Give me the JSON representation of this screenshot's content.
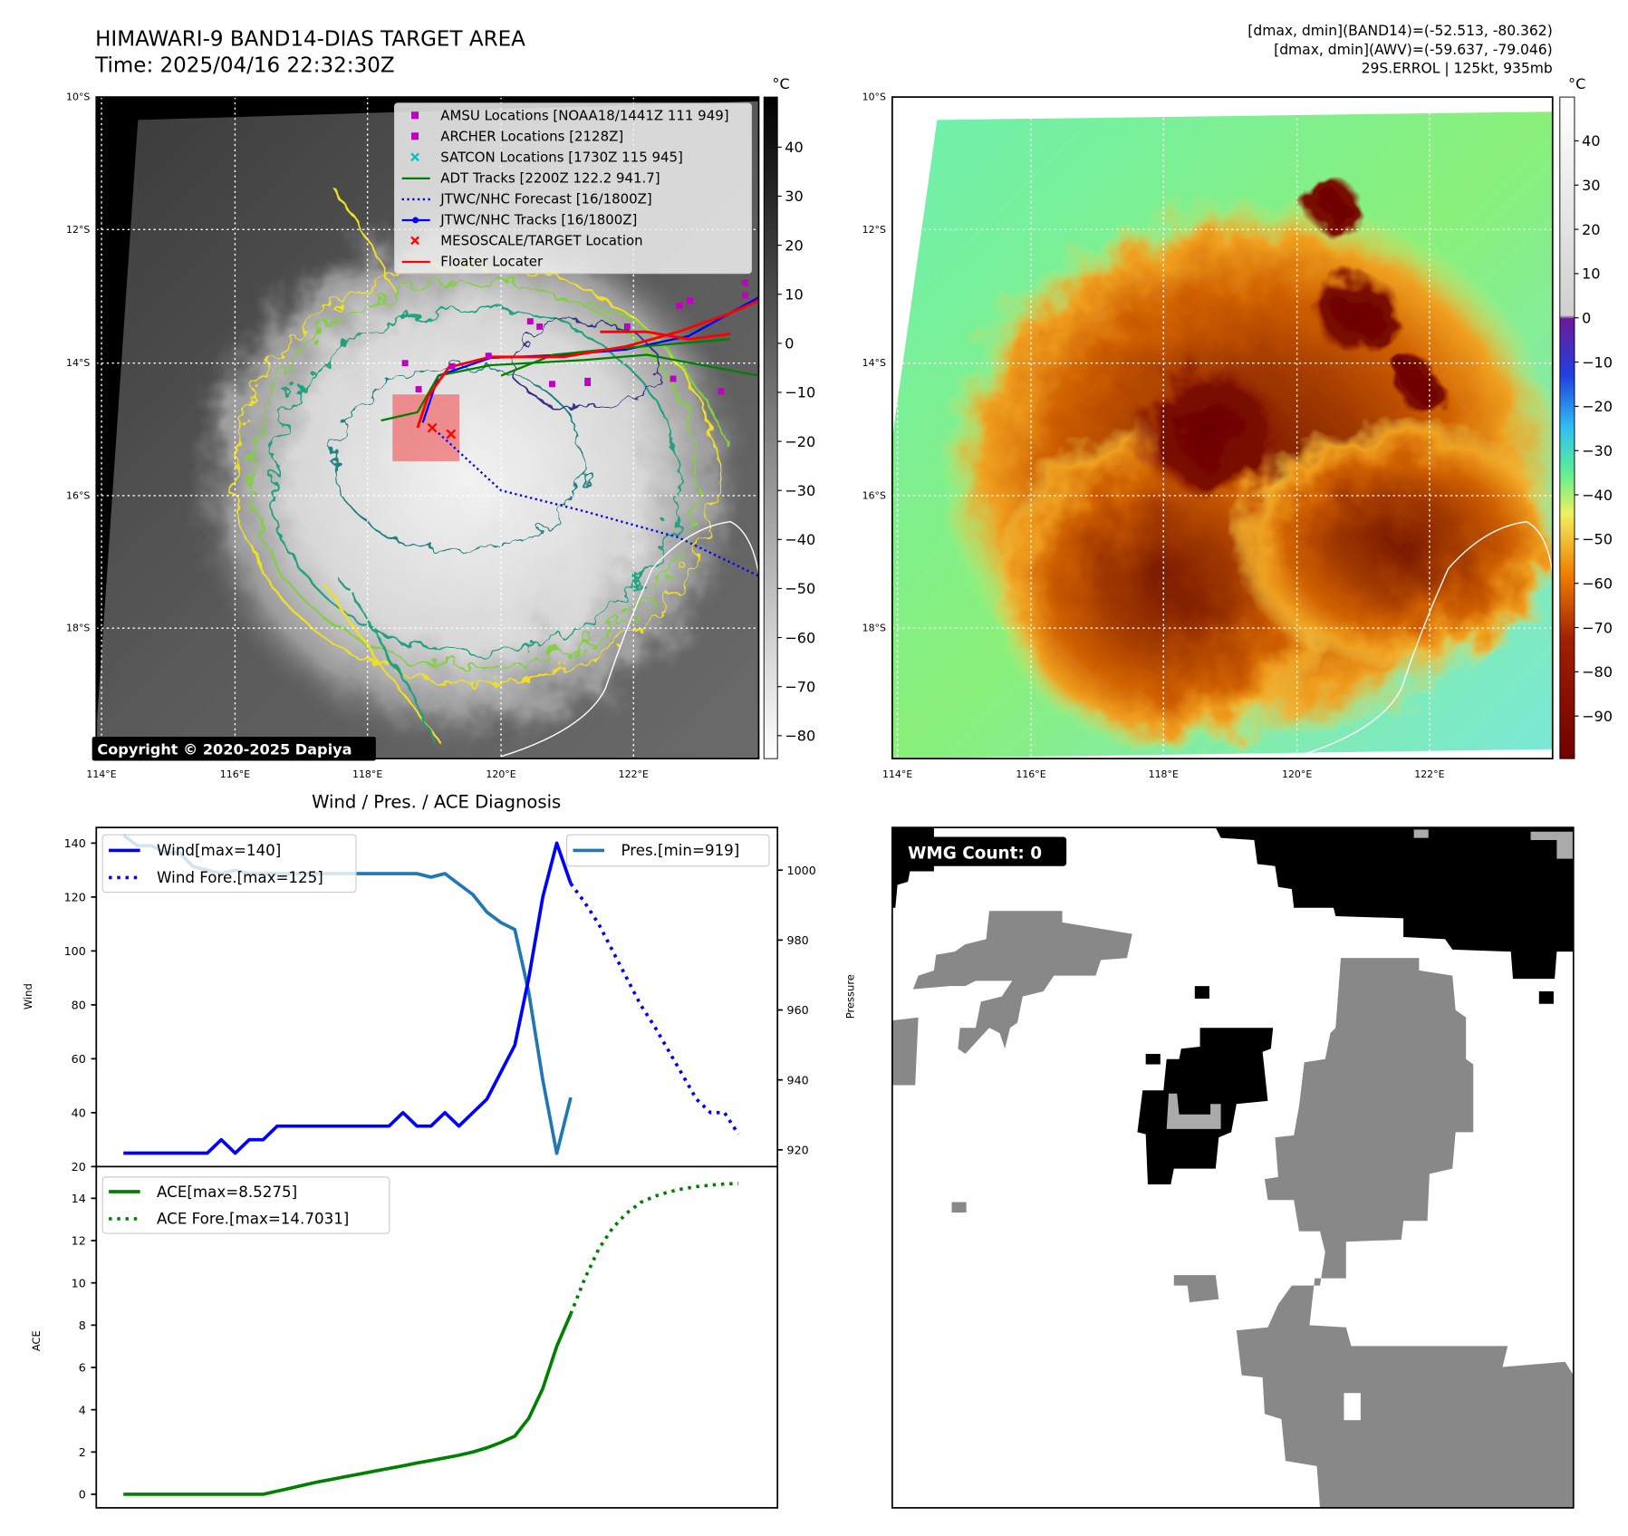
{
  "header": {
    "title_line1": "HIMAWARI-9 BAND14-DIAS TARGET AREA",
    "title_line2": "Time: 2025/04/16 22:32:30Z",
    "info_line1": "[dmax, dmin](BAND14)=(-52.513, -80.362)",
    "info_line2": "[dmax, dmin](AWV)=(-59.637, -79.046)",
    "info_line3": "29S.ERROL | 125kt, 935mb"
  },
  "maps": {
    "lat_ticks": [
      "10°S",
      "12°S",
      "14°S",
      "16°S",
      "18°S"
    ],
    "lon_ticks": [
      "114°E",
      "116°E",
      "118°E",
      "120°E",
      "122°E"
    ],
    "colorbar_unit": "°C",
    "left_colorbar_ticks": [
      "40",
      "30",
      "20",
      "10",
      "0",
      "−10",
      "−20",
      "−30",
      "−40",
      "−50",
      "−60",
      "−70",
      "−80"
    ],
    "right_colorbar_ticks": [
      "40",
      "30",
      "20",
      "10",
      "0",
      "−10",
      "−20",
      "−30",
      "−40",
      "−50",
      "−60",
      "−70",
      "−80",
      "−90"
    ],
    "copyright": "Copyright © 2020-2025 Dapiya",
    "legend": [
      {
        "label": "AMSU Locations [NOAA18/1441Z 111 949]",
        "color": "#c000c0",
        "symbol": "square"
      },
      {
        "label": "ARCHER Locations [2128Z]",
        "color": "#c000c0",
        "symbol": "square"
      },
      {
        "label": "SATCON Locations [1730Z 115 945]",
        "color": "#00c0c0",
        "symbol": "x"
      },
      {
        "label": "ADT Tracks [2200Z 122.2 941.7]",
        "color": "#008000",
        "symbol": "line"
      },
      {
        "label": "JTWC/NHC Forecast [16/1800Z]",
        "color": "#0000ff",
        "symbol": "dotted"
      },
      {
        "label": "JTWC/NHC Tracks [16/1800Z]",
        "color": "#0000ff",
        "symbol": "line-dot"
      },
      {
        "label": "MESOSCALE/TARGET Location",
        "color": "#ff0000",
        "symbol": "x"
      },
      {
        "label": "Floater Locater",
        "color": "#ff0000",
        "symbol": "line"
      }
    ]
  },
  "wmg": {
    "label": "WMG Count: 0"
  },
  "chart_data": [
    {
      "type": "line",
      "title": "Wind / Pres. / ACE Diagnosis",
      "ylabel": "Wind",
      "y2label": "Pressure",
      "ylim": [
        20,
        145.8
      ],
      "y2lim": [
        915.2,
        1012.2
      ],
      "yticks": [
        "20",
        "40",
        "60",
        "80",
        "100",
        "120",
        "140"
      ],
      "y2ticks": [
        "920",
        "940",
        "960",
        "980",
        "1000"
      ],
      "series": [
        {
          "name": "Wind[max=140]",
          "color": "#0000ff",
          "style": "solid",
          "x_start": 0,
          "values": [
            25,
            25,
            25,
            25,
            25,
            25,
            25,
            30,
            25,
            30,
            30,
            35,
            35,
            35,
            35,
            35,
            35,
            35,
            35,
            35,
            40,
            35,
            35,
            40,
            35,
            40,
            45,
            55,
            65,
            90,
            120,
            140,
            125
          ]
        },
        {
          "name": "Wind Fore.[max=125]",
          "color": "#0000ff",
          "style": "dotted",
          "x_start": 32,
          "values": [
            125,
            118,
            110,
            100,
            90,
            80,
            72,
            63,
            54,
            45,
            40,
            40,
            32
          ]
        },
        {
          "name": "Pres.[min=919]",
          "color": "#1f77b4",
          "style": "solid",
          "axis": "right",
          "x_start": 0,
          "values": [
            1010,
            1007,
            1007,
            1005,
            1005,
            1001,
            1000,
            999,
            1000,
            999,
            999,
            999,
            999,
            999,
            999,
            999,
            999,
            999,
            999,
            999,
            999,
            999,
            998,
            999,
            996,
            993,
            988,
            985,
            983,
            965,
            940,
            919,
            935
          ]
        }
      ]
    },
    {
      "type": "line",
      "ylabel": "ACE",
      "ylim": [
        -0.64,
        15.5
      ],
      "yticks": [
        "0",
        "2",
        "4",
        "6",
        "8",
        "10",
        "12",
        "14"
      ],
      "series": [
        {
          "name": "ACE[max=8.5275]",
          "color": "#008000",
          "style": "solid",
          "x_start": 0,
          "values": [
            0,
            0,
            0,
            0,
            0,
            0,
            0,
            0,
            0,
            0,
            0,
            0.15,
            0.3,
            0.45,
            0.6,
            0.72,
            0.85,
            0.97,
            1.1,
            1.22,
            1.35,
            1.48,
            1.6,
            1.72,
            1.85,
            2.0,
            2.2,
            2.45,
            2.75,
            3.6,
            5.0,
            7.0,
            8.53
          ]
        },
        {
          "name": "ACE Fore.[max=14.7031]",
          "color": "#008000",
          "style": "dotted",
          "x_start": 32,
          "values": [
            8.53,
            10.2,
            11.6,
            12.6,
            13.3,
            13.8,
            14.1,
            14.3,
            14.45,
            14.55,
            14.62,
            14.68,
            14.7
          ]
        }
      ]
    }
  ]
}
